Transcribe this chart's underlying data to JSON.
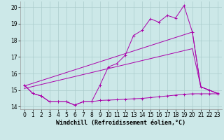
{
  "xlabel": "Windchill (Refroidissement éolien,°C)",
  "background_color": "#cce8e8",
  "grid_color": "#aacccc",
  "line_color": "#aa00aa",
  "xlim": [
    -0.5,
    23.5
  ],
  "ylim": [
    13.85,
    20.35
  ],
  "yticks": [
    14,
    15,
    16,
    17,
    18,
    19,
    20
  ],
  "xticks": [
    0,
    1,
    2,
    3,
    4,
    5,
    6,
    7,
    8,
    9,
    10,
    11,
    12,
    13,
    14,
    15,
    16,
    17,
    18,
    19,
    20,
    21,
    22,
    23
  ],
  "series_main_x": [
    0,
    1,
    2,
    3,
    4,
    5,
    6,
    7,
    8,
    9,
    10,
    11,
    12,
    13,
    14,
    15,
    16,
    17,
    18,
    19,
    20,
    21,
    22,
    23
  ],
  "series_main_y": [
    15.3,
    14.8,
    14.65,
    14.3,
    14.3,
    14.3,
    14.1,
    14.3,
    14.3,
    15.3,
    16.4,
    16.6,
    17.1,
    18.3,
    18.6,
    19.3,
    19.1,
    19.5,
    19.35,
    20.1,
    18.5,
    15.2,
    15.0,
    14.8
  ],
  "series_flat_x": [
    0,
    1,
    2,
    3,
    4,
    5,
    6,
    7,
    8,
    9,
    10,
    11,
    12,
    13,
    14,
    15,
    16,
    17,
    18,
    19,
    20,
    21,
    22,
    23
  ],
  "series_flat_y": [
    15.3,
    14.8,
    14.65,
    14.3,
    14.3,
    14.3,
    14.1,
    14.3,
    14.3,
    14.38,
    14.4,
    14.42,
    14.45,
    14.48,
    14.5,
    14.55,
    14.6,
    14.65,
    14.7,
    14.75,
    14.78,
    14.78,
    14.78,
    14.78
  ],
  "series_upper_x": [
    0,
    20,
    21,
    22,
    23
  ],
  "series_upper_y": [
    15.25,
    18.5,
    15.2,
    15.0,
    14.8
  ],
  "series_lower_x": [
    0,
    20,
    21,
    22,
    23
  ],
  "series_lower_y": [
    15.1,
    17.5,
    15.2,
    15.0,
    14.8
  ],
  "xlabel_fontsize": 6,
  "tick_fontsize": 5.5
}
